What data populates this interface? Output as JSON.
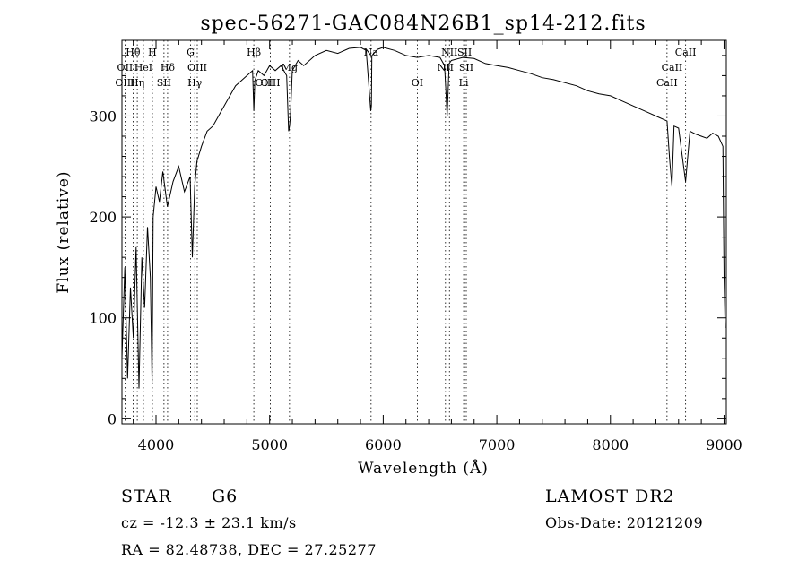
{
  "chart_data": {
    "type": "line",
    "title": "spec-56271-GAC084N26B1_sp14-212.fits",
    "xlabel": "Wavelength (Å)",
    "ylabel": "Flux (relative)",
    "xlim": [
      3700,
      9020
    ],
    "ylim": [
      -5,
      375
    ],
    "xticks": [
      4000,
      5000,
      6000,
      7000,
      8000,
      9000
    ],
    "yticks": [
      0,
      100,
      200,
      300
    ],
    "xtick_labels": [
      "4000",
      "5000",
      "6000",
      "7000",
      "8000",
      "9000"
    ],
    "ytick_labels": [
      "0",
      "100",
      "200",
      "300"
    ],
    "grid": false,
    "series": [
      {
        "x": [
          3700,
          3725,
          3750,
          3775,
          3800,
          3825,
          3850,
          3875,
          3900,
          3925,
          3950,
          3965,
          3975,
          4000,
          4030,
          4060,
          4100,
          4150,
          4200,
          4250,
          4300,
          4320,
          4340,
          4360,
          4400,
          4450,
          4500,
          4550,
          4600,
          4650,
          4700,
          4750,
          4800,
          4850,
          4861,
          4870,
          4900,
          4950,
          5000,
          5050,
          5100,
          5150,
          5167,
          5175,
          5183,
          5200,
          5250,
          5300,
          5400,
          5500,
          5600,
          5700,
          5800,
          5850,
          5890,
          5896,
          5900,
          5950,
          6000,
          6100,
          6200,
          6300,
          6400,
          6500,
          6540,
          6563,
          6580,
          6600,
          6700,
          6800,
          6900,
          7000,
          7100,
          7200,
          7300,
          7400,
          7500,
          7600,
          7700,
          7800,
          7900,
          8000,
          8100,
          8200,
          8300,
          8400,
          8498,
          8520,
          8542,
          8560,
          8600,
          8662,
          8700,
          8750,
          8800,
          8850,
          8900,
          8950,
          8990,
          9000,
          9010
        ],
        "y": [
          60,
          150,
          40,
          130,
          80,
          170,
          30,
          160,
          110,
          190,
          140,
          35,
          200,
          230,
          215,
          245,
          210,
          235,
          250,
          225,
          240,
          160,
          230,
          255,
          270,
          285,
          290,
          300,
          310,
          320,
          330,
          335,
          340,
          345,
          305,
          335,
          345,
          340,
          350,
          345,
          350,
          340,
          285,
          290,
          300,
          345,
          355,
          350,
          360,
          365,
          362,
          367,
          368,
          365,
          305,
          310,
          360,
          366,
          368,
          365,
          360,
          358,
          360,
          358,
          350,
          300,
          352,
          355,
          358,
          357,
          352,
          350,
          348,
          345,
          342,
          338,
          336,
          333,
          330,
          325,
          322,
          320,
          315,
          310,
          305,
          300,
          295,
          258,
          230,
          290,
          288,
          235,
          285,
          282,
          280,
          278,
          283,
          280,
          270,
          140,
          90
        ]
      }
    ],
    "spectral_lines": [
      {
        "name": "Hθ",
        "wave": 3798,
        "row": 1
      },
      {
        "name": "OII",
        "wave": 3727,
        "row": 2
      },
      {
        "name": "OIII",
        "wave": 3727,
        "row": 3
      },
      {
        "name": "H",
        "wave": 3968,
        "row": 1
      },
      {
        "name": "HeI",
        "wave": 3889,
        "row": 2
      },
      {
        "name": "Hη",
        "wave": 3835,
        "row": 3
      },
      {
        "name": "Hδ",
        "wave": 4102,
        "row": 2
      },
      {
        "name": "SII",
        "wave": 4070,
        "row": 3
      },
      {
        "name": "G",
        "wave": 4304,
        "row": 1
      },
      {
        "name": "OIII",
        "wave": 4363,
        "row": 2
      },
      {
        "name": "Hγ",
        "wave": 4341,
        "row": 3
      },
      {
        "name": "Hβ",
        "wave": 4861,
        "row": 1
      },
      {
        "name": "OIII",
        "wave": 4959,
        "row": 3
      },
      {
        "name": "OIII",
        "wave": 5007,
        "row": 3
      },
      {
        "name": "Mg",
        "wave": 5175,
        "row": 2
      },
      {
        "name": "Na",
        "wave": 5893,
        "row": 1
      },
      {
        "name": "OI",
        "wave": 6300,
        "row": 3
      },
      {
        "name": "NII",
        "wave": 6583,
        "row": 1
      },
      {
        "name": "SII",
        "wave": 6716,
        "row": 1
      },
      {
        "name": "NII",
        "wave": 6548,
        "row": 2
      },
      {
        "name": "SII",
        "wave": 6731,
        "row": 2
      },
      {
        "name": "Li",
        "wave": 6708,
        "row": 3
      },
      {
        "name": "CaII",
        "wave": 8662,
        "row": 1
      },
      {
        "name": "CaII",
        "wave": 8542,
        "row": 2
      },
      {
        "name": "CaII",
        "wave": 8498,
        "row": 3
      }
    ]
  },
  "info": {
    "class": "STAR",
    "subclass": "G6",
    "survey": "LAMOST DR2",
    "redshift": "cz = -12.3 ± 23.1 km/s",
    "obs_date": "Obs-Date: 20121209",
    "coords": "RA =  82.48738, DEC =  27.25277"
  }
}
